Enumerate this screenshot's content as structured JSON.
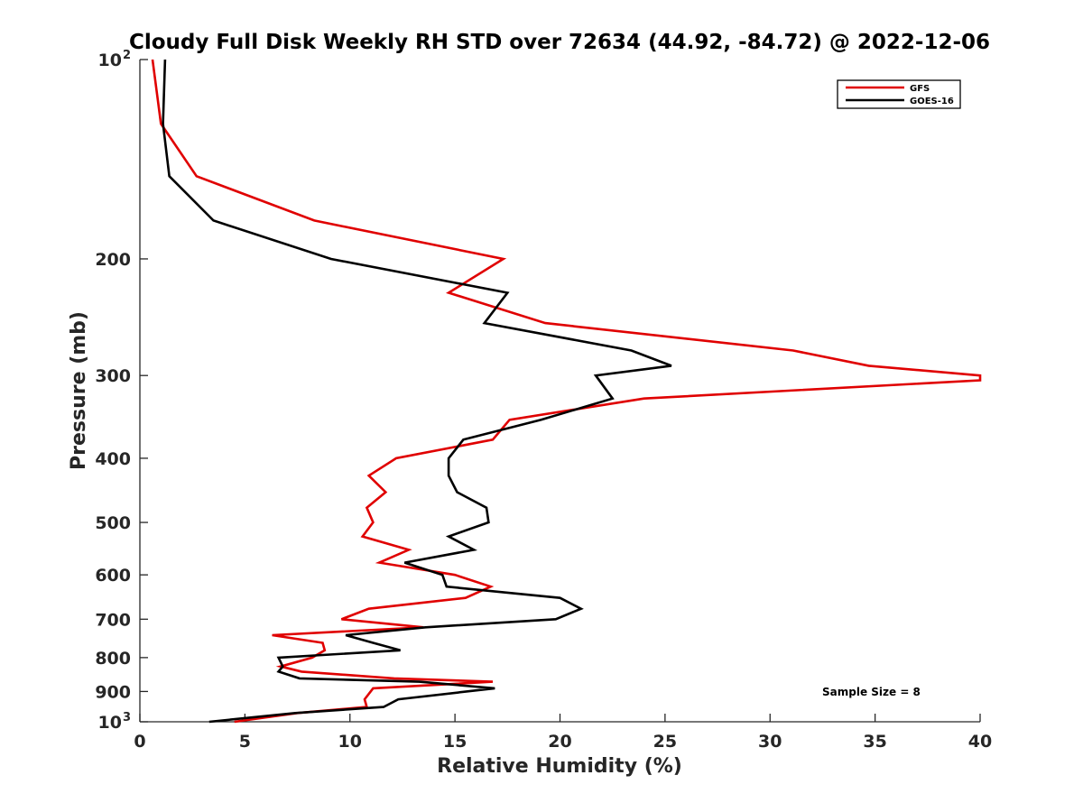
{
  "chart_data": {
    "type": "line",
    "title": "Cloudy Full Disk Weekly RH STD over 72634 (44.92, -84.72) @ 2022-12-06",
    "xlabel": "Relative Humidity (%)",
    "ylabel": "Pressure (mb)",
    "xlim": [
      0,
      40
    ],
    "ylim": [
      100,
      1000
    ],
    "y_scale": "log",
    "y_reversed": true,
    "grid": false,
    "legend_position": "top-right",
    "x_ticks": [
      0,
      5,
      10,
      15,
      20,
      25,
      30,
      35,
      40
    ],
    "x_tick_labels": [
      "0",
      "5",
      "10",
      "15",
      "20",
      "25",
      "30",
      "35",
      "40"
    ],
    "y_ticks": [
      {
        "value": 100,
        "base": "10",
        "exp": "2"
      },
      {
        "value": 200,
        "label": "200"
      },
      {
        "value": 300,
        "label": "300"
      },
      {
        "value": 400,
        "label": "400"
      },
      {
        "value": 500,
        "label": "500"
      },
      {
        "value": 600,
        "label": "600"
      },
      {
        "value": 700,
        "label": "700"
      },
      {
        "value": 800,
        "label": "800"
      },
      {
        "value": 900,
        "label": "900"
      },
      {
        "value": 1000,
        "base": "10",
        "exp": "3"
      }
    ],
    "series": [
      {
        "name": "GFS",
        "color": "#e00000",
        "points": [
          [
            0.6,
            100
          ],
          [
            1.0,
            125
          ],
          [
            2.7,
            150
          ],
          [
            8.3,
            175
          ],
          [
            17.3,
            200
          ],
          [
            14.7,
            225
          ],
          [
            19.3,
            250
          ],
          [
            31.1,
            275
          ],
          [
            34.7,
            290
          ],
          [
            40.0,
            300
          ],
          [
            40.0,
            305
          ],
          [
            24.0,
            325
          ],
          [
            17.6,
            350
          ],
          [
            16.8,
            375
          ],
          [
            12.2,
            400
          ],
          [
            10.9,
            425
          ],
          [
            11.7,
            450
          ],
          [
            10.8,
            475
          ],
          [
            11.1,
            500
          ],
          [
            10.6,
            525
          ],
          [
            12.8,
            550
          ],
          [
            11.4,
            575
          ],
          [
            15.0,
            600
          ],
          [
            16.7,
            625
          ],
          [
            15.5,
            650
          ],
          [
            10.9,
            675
          ],
          [
            9.6,
            700
          ],
          [
            13.5,
            720
          ],
          [
            6.3,
            740
          ],
          [
            8.7,
            760
          ],
          [
            8.8,
            780
          ],
          [
            8.2,
            800
          ],
          [
            6.7,
            825
          ],
          [
            7.7,
            840
          ],
          [
            12.1,
            860
          ],
          [
            16.8,
            870
          ],
          [
            11.1,
            890
          ],
          [
            10.7,
            925
          ],
          [
            10.8,
            950
          ],
          [
            7.5,
            970
          ],
          [
            4.5,
            1000
          ]
        ]
      },
      {
        "name": "GOES-16",
        "color": "#000000",
        "points": [
          [
            1.2,
            100
          ],
          [
            1.1,
            125
          ],
          [
            1.4,
            150
          ],
          [
            3.5,
            175
          ],
          [
            9.1,
            200
          ],
          [
            17.5,
            225
          ],
          [
            16.4,
            250
          ],
          [
            23.4,
            275
          ],
          [
            25.3,
            290
          ],
          [
            21.7,
            300
          ],
          [
            22.5,
            325
          ],
          [
            19.1,
            350
          ],
          [
            15.4,
            375
          ],
          [
            14.7,
            400
          ],
          [
            14.7,
            425
          ],
          [
            15.1,
            450
          ],
          [
            16.5,
            475
          ],
          [
            16.6,
            500
          ],
          [
            14.7,
            525
          ],
          [
            15.9,
            550
          ],
          [
            12.6,
            575
          ],
          [
            14.4,
            600
          ],
          [
            14.6,
            625
          ],
          [
            20.0,
            650
          ],
          [
            21.0,
            675
          ],
          [
            19.8,
            700
          ],
          [
            13.6,
            720
          ],
          [
            9.8,
            740
          ],
          [
            11.1,
            760
          ],
          [
            12.4,
            780
          ],
          [
            6.6,
            800
          ],
          [
            6.8,
            825
          ],
          [
            6.6,
            840
          ],
          [
            7.6,
            860
          ],
          [
            13.3,
            870
          ],
          [
            16.9,
            890
          ],
          [
            12.3,
            925
          ],
          [
            11.6,
            950
          ],
          [
            7.4,
            970
          ],
          [
            3.3,
            1000
          ]
        ]
      }
    ],
    "annotation": "Sample Size = 8"
  }
}
